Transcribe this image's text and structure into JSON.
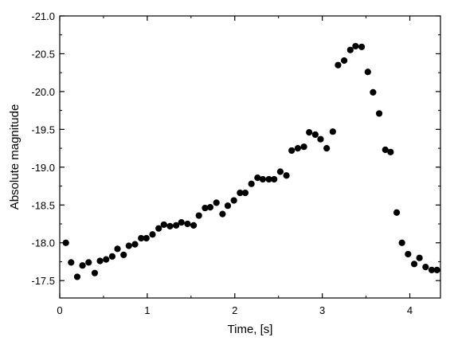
{
  "chart_data": {
    "type": "scatter",
    "title": "",
    "xlabel": "Time, [s]",
    "ylabel": "Absolute magnitude",
    "xlim": [
      0,
      4.35
    ],
    "ylim": [
      -17.27,
      -21.0
    ],
    "y_axis_inverted": true,
    "grid": false,
    "legend": "none",
    "x_ticks": [
      0,
      1,
      2,
      3,
      4
    ],
    "x_tick_labels": [
      "0",
      "1",
      "2",
      "3",
      "4"
    ],
    "y_ticks": [
      -17.5,
      -18.0,
      -18.5,
      -19.0,
      -19.5,
      -20.0,
      -20.5,
      -21.0
    ],
    "y_tick_labels": [
      "-17.5",
      "-18.0",
      "-18.5",
      "-19.0",
      "-19.5",
      "-20.0",
      "-20.5",
      "-21.0"
    ],
    "marker_color": "#000000",
    "series": [
      {
        "x": [
          0.07,
          0.13,
          0.2,
          0.26,
          0.33,
          0.4,
          0.46,
          0.53,
          0.6,
          0.66,
          0.73,
          0.79,
          0.86,
          0.93,
          0.99,
          1.06,
          1.13,
          1.19,
          1.26,
          1.33,
          1.39,
          1.46,
          1.53,
          1.59,
          1.66,
          1.72,
          1.79,
          1.86,
          1.92,
          1.99,
          2.06,
          2.12,
          2.19,
          2.26,
          2.32,
          2.39,
          2.45,
          2.52,
          2.59,
          2.65,
          2.72,
          2.79,
          2.85,
          2.92,
          2.98,
          3.05,
          3.12,
          3.18,
          3.25,
          3.32,
          3.38,
          3.45,
          3.52,
          3.58,
          3.65,
          3.72,
          3.78,
          3.85,
          3.91,
          3.98,
          4.05,
          4.11,
          4.18,
          4.25,
          4.31
        ],
        "y": [
          -18.0,
          -17.74,
          -17.55,
          -17.7,
          -17.74,
          -17.6,
          -17.76,
          -17.78,
          -17.82,
          -17.92,
          -17.84,
          -17.96,
          -17.98,
          -18.06,
          -18.06,
          -18.11,
          -18.19,
          -18.24,
          -18.22,
          -18.23,
          -18.27,
          -18.25,
          -18.23,
          -18.36,
          -18.46,
          -18.47,
          -18.53,
          -18.38,
          -18.49,
          -18.56,
          -18.66,
          -18.66,
          -18.78,
          -18.86,
          -18.84,
          -18.84,
          -18.84,
          -18.94,
          -18.89,
          -19.22,
          -19.25,
          -19.27,
          -19.46,
          -19.43,
          -19.37,
          -19.25,
          -19.47,
          -20.35,
          -20.41,
          -20.55,
          -20.6,
          -20.59,
          -20.26,
          -19.99,
          -19.71,
          -19.23,
          -19.2,
          -18.4,
          -18.0,
          -17.85,
          -17.72,
          -17.8,
          -17.68,
          -17.64,
          -17.64
        ]
      }
    ]
  }
}
